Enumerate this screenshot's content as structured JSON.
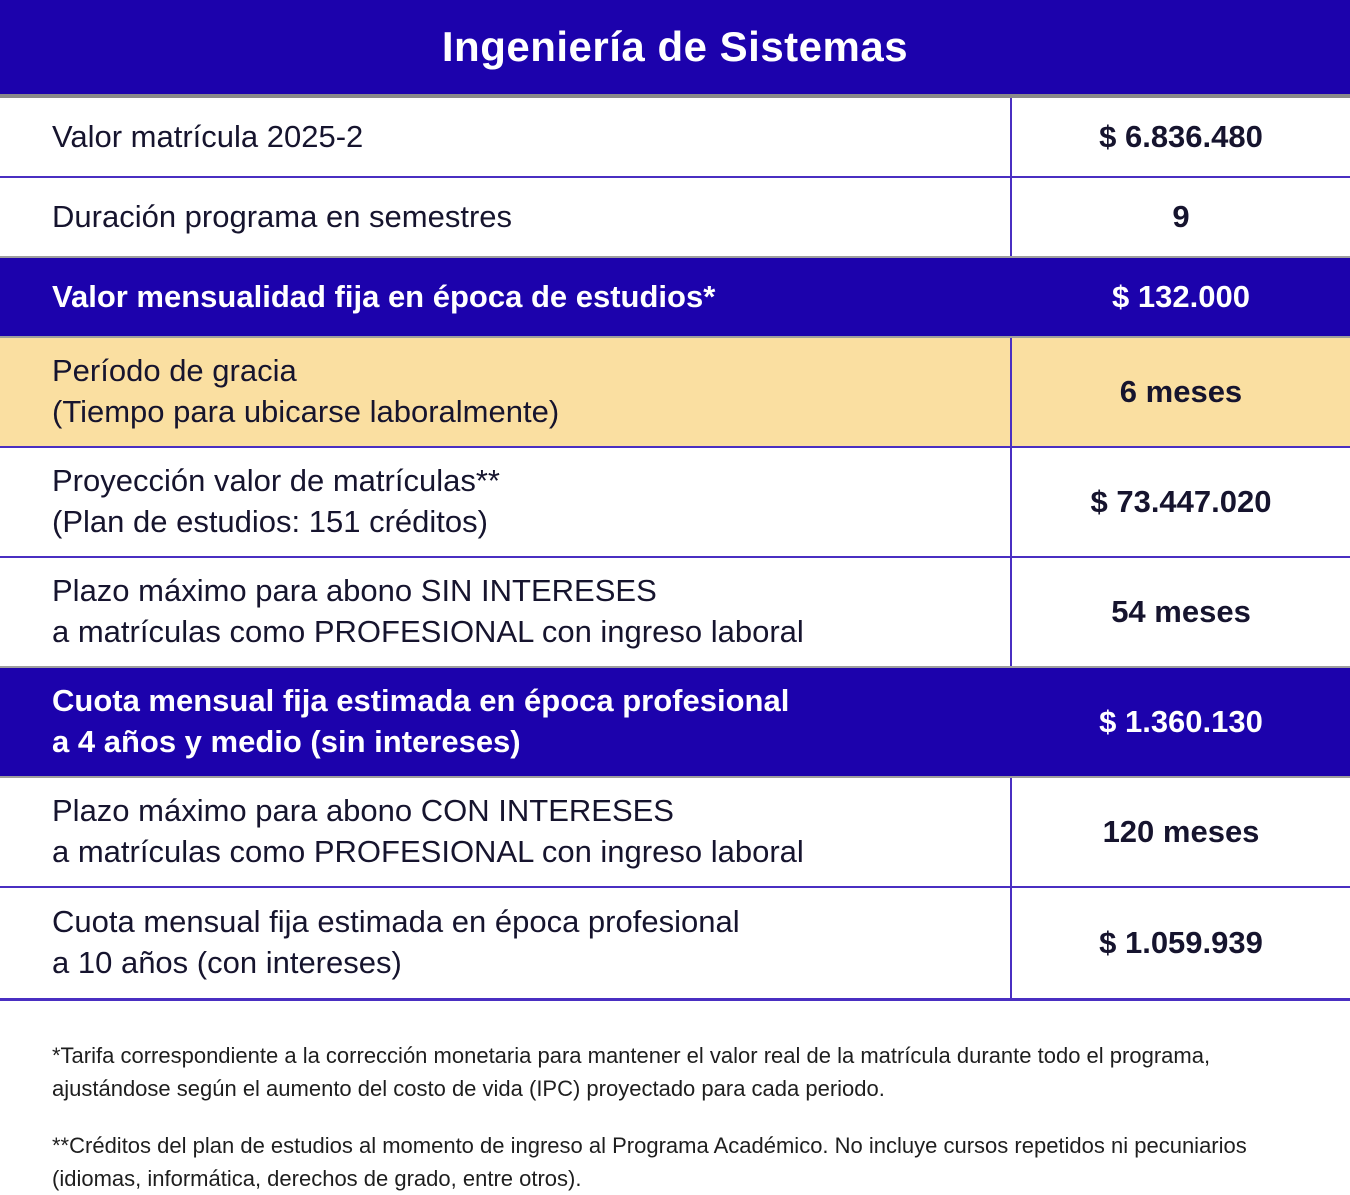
{
  "header": {
    "title": "Ingeniería de Sistemas"
  },
  "table": {
    "rows": [
      {
        "label_lines": [
          "Valor matrícula 2025-2"
        ],
        "value": "$ 6.836.480",
        "variant": "default"
      },
      {
        "label_lines": [
          "Duración programa en semestres"
        ],
        "value": "9",
        "variant": "default"
      },
      {
        "label_lines": [
          "Valor mensualidad fija en época de estudios*"
        ],
        "value": "$ 132.000",
        "variant": "highlight-blue"
      },
      {
        "label_lines": [
          "Período de gracia",
          "(Tiempo para ubicarse laboralmente)"
        ],
        "value": "6 meses",
        "variant": "highlight-cream"
      },
      {
        "label_lines": [
          "Proyección valor de matrículas**",
          "(Plan de estudios: 151 créditos)"
        ],
        "value": "$ 73.447.020",
        "variant": "default"
      },
      {
        "label_lines": [
          "Plazo máximo para abono SIN INTERESES",
          "a matrículas como PROFESIONAL con ingreso laboral"
        ],
        "value": "54 meses",
        "variant": "default"
      },
      {
        "label_lines": [
          "Cuota mensual fija estimada en época profesional",
          "a 4 años y medio (sin intereses)"
        ],
        "value": "$ 1.360.130",
        "variant": "highlight-blue"
      },
      {
        "label_lines": [
          "Plazo máximo para abono CON INTERESES",
          "a matrículas como PROFESIONAL con ingreso laboral"
        ],
        "value": "120 meses",
        "variant": "default"
      },
      {
        "label_lines": [
          "Cuota mensual fija estimada en época profesional",
          "a 10 años (con intereses)"
        ],
        "value": "$ 1.059.939",
        "variant": "default"
      }
    ]
  },
  "footnotes": [
    {
      "lines": [
        "*Tarifa correspondiente a la corrección monetaria para mantener el valor real de la matrícula durante todo el programa,",
        "ajustándose según el aumento del costo de vida (IPC) proyectado para cada periodo."
      ]
    },
    {
      "lines": [
        "**Créditos del plan de estudios al momento de ingreso al Programa Académico. No incluye cursos repetidos ni pecuniarios",
        "(idiomas, informática, derechos de grado, entre otros)."
      ]
    }
  ],
  "colors": {
    "header_bg": "#1C02AC",
    "highlight_blue": "#1C02AC",
    "highlight_cream": "#FADFA1",
    "row_border": "#4A2FC2",
    "text_dark": "#16142E"
  }
}
